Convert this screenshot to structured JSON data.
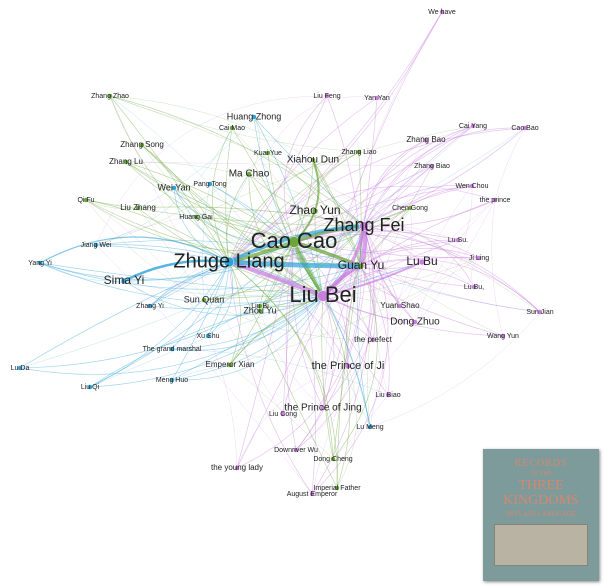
{
  "graph": {
    "nodes": [
      {
        "label": "We have"
      },
      {
        "label": "Zhang Zhao"
      },
      {
        "label": "Liu Feng"
      },
      {
        "label": "Yan Yan"
      },
      {
        "label": "Huang Zhong"
      },
      {
        "label": "Cai Yang"
      },
      {
        "label": "Cao Bao"
      },
      {
        "label": "Cai Mao"
      },
      {
        "label": "Zhang Bao"
      },
      {
        "label": "Zhang Song"
      },
      {
        "label": "Kuai Yue"
      },
      {
        "label": "Zhang Liao"
      },
      {
        "label": "Xiahou Dun"
      },
      {
        "label": "Zhang Biao"
      },
      {
        "label": "Zhang Lu"
      },
      {
        "label": "Ma Chao"
      },
      {
        "label": "Pang Tong"
      },
      {
        "label": "Wei Yan"
      },
      {
        "label": "Wen Chou"
      },
      {
        "label": "Qi Fu"
      },
      {
        "label": "the prince"
      },
      {
        "label": "Liu Zhang"
      },
      {
        "label": "Chen Gong"
      },
      {
        "label": "Huang Gai"
      },
      {
        "label": "Zhao Yun"
      },
      {
        "label": "Zhang Fei"
      },
      {
        "label": "Cao Cao"
      },
      {
        "label": "Jiang Wei"
      },
      {
        "label": "Lu Su."
      },
      {
        "label": "Zhuge Liang"
      },
      {
        "label": "Ji Ling"
      },
      {
        "label": "Guan Yu"
      },
      {
        "label": "Lu Bu"
      },
      {
        "label": "Yang Yi"
      },
      {
        "label": "Sima Yi"
      },
      {
        "label": "Liu Bei"
      },
      {
        "label": "Lu Bu,"
      },
      {
        "label": "Sun Quan"
      },
      {
        "label": "Zhang Yi"
      },
      {
        "label": "Liu Bi"
      },
      {
        "label": "Zhou Yu"
      },
      {
        "label": "Sun Jian"
      },
      {
        "label": "Yuan Shao"
      },
      {
        "label": "Dong Zhuo"
      },
      {
        "label": "Xu Shu"
      },
      {
        "label": "Wang Yun"
      },
      {
        "label": "the prefect"
      },
      {
        "label": "The grand marshal"
      },
      {
        "label": "Lu Da"
      },
      {
        "label": "Emperor Xian"
      },
      {
        "label": "the Prince of Ji"
      },
      {
        "label": "Meng Huo"
      },
      {
        "label": "Liu Qi"
      },
      {
        "label": "Liu Biao"
      },
      {
        "label": "the Prince of Jing"
      },
      {
        "label": "Liu Cong"
      },
      {
        "label": "Lu Meng"
      },
      {
        "label": "Downriver Wu"
      },
      {
        "label": "Dong Cheng"
      },
      {
        "label": "the young lady"
      },
      {
        "label": "Imperial Father"
      },
      {
        "label": "August Emperor"
      }
    ]
  },
  "book": {
    "lines": [
      "RECORDS",
      "OF THE",
      "THREE",
      "KINGDOMS",
      "IN PLAIN LANGUAGE"
    ]
  }
}
